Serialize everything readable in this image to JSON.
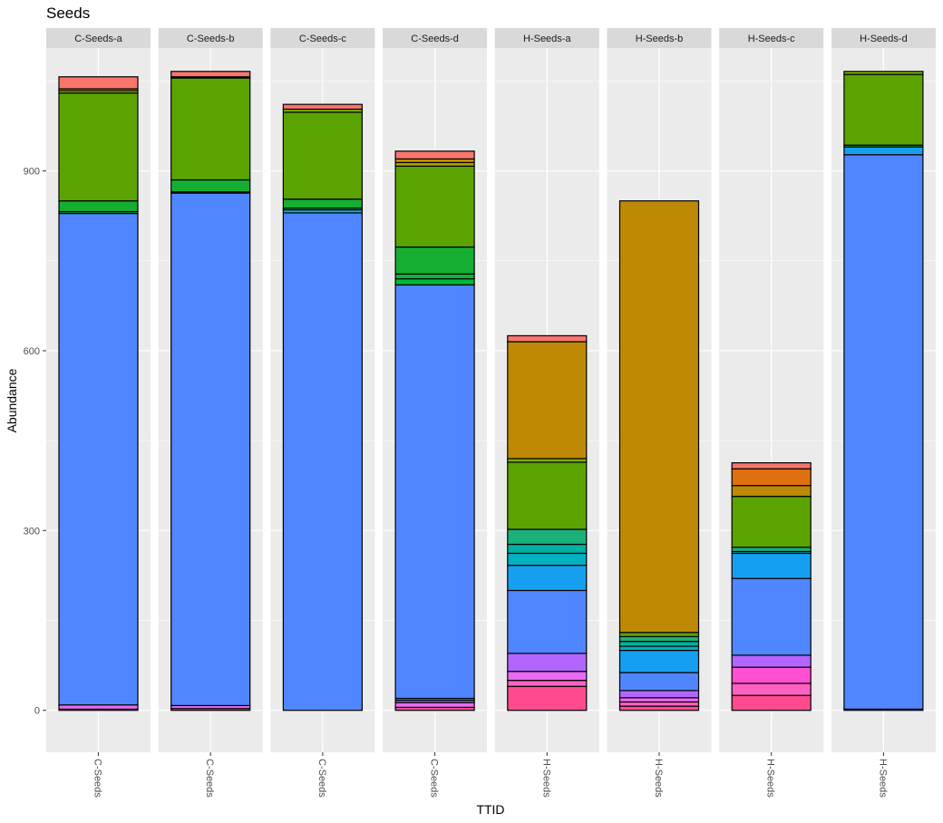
{
  "chart_data": {
    "type": "bar",
    "stacked": true,
    "title": "Seeds",
    "xlabel": "TTID",
    "ylabel": "Abundance",
    "ylim": [
      -70,
      1105
    ],
    "y_ticks": [
      0,
      300,
      600,
      900
    ],
    "grid": true,
    "legend": "none",
    "facets": [
      {
        "name": "C-Seeds-a",
        "x_label": "C-Seeds",
        "segments": [
          {
            "value": 2,
            "color": "#FF4A8F"
          },
          {
            "value": 7,
            "color": "#E76BF3"
          },
          {
            "value": 820,
            "color": "#5086FF"
          },
          {
            "value": 3,
            "color": "#00BA38"
          },
          {
            "value": 18,
            "color": "#15AE33"
          },
          {
            "value": 180,
            "color": "#5BA300"
          },
          {
            "value": 4,
            "color": "#7CAE00"
          },
          {
            "value": 3,
            "color": "#AEA200"
          },
          {
            "value": 20,
            "color": "#F8766D"
          }
        ]
      },
      {
        "name": "C-Seeds-b",
        "x_label": "C-Seeds",
        "segments": [
          {
            "value": 3,
            "color": "#FF4A8F"
          },
          {
            "value": 5,
            "color": "#E76BF3"
          },
          {
            "value": 855,
            "color": "#5086FF"
          },
          {
            "value": 2,
            "color": "#00BA38"
          },
          {
            "value": 20,
            "color": "#15AE33"
          },
          {
            "value": 170,
            "color": "#5BA300"
          },
          {
            "value": 2,
            "color": "#7CAE00"
          },
          {
            "value": 9,
            "color": "#F8766D"
          }
        ]
      },
      {
        "name": "C-Seeds-c",
        "x_label": "C-Seeds",
        "segments": [
          {
            "value": 830,
            "color": "#5086FF"
          },
          {
            "value": 5,
            "color": "#00B8E7"
          },
          {
            "value": 3,
            "color": "#00BA38"
          },
          {
            "value": 15,
            "color": "#15AE33"
          },
          {
            "value": 145,
            "color": "#5BA300"
          },
          {
            "value": 5,
            "color": "#7CAE00"
          },
          {
            "value": 8,
            "color": "#F8766D"
          }
        ]
      },
      {
        "name": "C-Seeds-d",
        "x_label": "C-Seeds",
        "segments": [
          {
            "value": 5,
            "color": "#FF4A8F"
          },
          {
            "value": 8,
            "color": "#E76BF3"
          },
          {
            "value": 4,
            "color": "#7B68EE"
          },
          {
            "value": 3,
            "color": "#00B8E7"
          },
          {
            "value": 690,
            "color": "#5086FF"
          },
          {
            "value": 10,
            "color": "#00BA38"
          },
          {
            "value": 8,
            "color": "#00BA38"
          },
          {
            "value": 45,
            "color": "#15AE33"
          },
          {
            "value": 135,
            "color": "#5BA300"
          },
          {
            "value": 6,
            "color": "#AEA200"
          },
          {
            "value": 6,
            "color": "#C09000"
          },
          {
            "value": 13,
            "color": "#F8766D"
          }
        ]
      },
      {
        "name": "H-Seeds-a",
        "x_label": "H-Seeds",
        "segments": [
          {
            "value": 40,
            "color": "#FF4A8F"
          },
          {
            "value": 10,
            "color": "#FF61C3"
          },
          {
            "value": 15,
            "color": "#E76BF3"
          },
          {
            "value": 30,
            "color": "#B266FF"
          },
          {
            "value": 105,
            "color": "#5086FF"
          },
          {
            "value": 42,
            "color": "#169FF0"
          },
          {
            "value": 20,
            "color": "#00B0C0"
          },
          {
            "value": 15,
            "color": "#00B0A0"
          },
          {
            "value": 25,
            "color": "#1CB07A"
          },
          {
            "value": 112,
            "color": "#5BA300"
          },
          {
            "value": 6,
            "color": "#7CAE00"
          },
          {
            "value": 195,
            "color": "#BE8A06"
          },
          {
            "value": 10,
            "color": "#F8766D"
          }
        ]
      },
      {
        "name": "H-Seeds-b",
        "x_label": "H-Seeds",
        "segments": [
          {
            "value": 7,
            "color": "#FF4A8F"
          },
          {
            "value": 7,
            "color": "#FF61C3"
          },
          {
            "value": 7,
            "color": "#E76BF3"
          },
          {
            "value": 12,
            "color": "#B266FF"
          },
          {
            "value": 30,
            "color": "#5086FF"
          },
          {
            "value": 37,
            "color": "#169FF0"
          },
          {
            "value": 7,
            "color": "#00B0C0"
          },
          {
            "value": 8,
            "color": "#00B0A0"
          },
          {
            "value": 8,
            "color": "#1CB07A"
          },
          {
            "value": 7,
            "color": "#5BA300"
          },
          {
            "value": 720,
            "color": "#BE8A06"
          }
        ]
      },
      {
        "name": "H-Seeds-c",
        "x_label": "H-Seeds",
        "segments": [
          {
            "value": 25,
            "color": "#FF4A8F"
          },
          {
            "value": 20,
            "color": "#FF61C3"
          },
          {
            "value": 27,
            "color": "#FF4FD3"
          },
          {
            "value": 20,
            "color": "#B266FF"
          },
          {
            "value": 128,
            "color": "#5086FF"
          },
          {
            "value": 42,
            "color": "#169FF0"
          },
          {
            "value": 3,
            "color": "#00B0C0"
          },
          {
            "value": 7,
            "color": "#1CB07A"
          },
          {
            "value": 85,
            "color": "#5BA300"
          },
          {
            "value": 18,
            "color": "#BE8A06"
          },
          {
            "value": 28,
            "color": "#DF7010"
          },
          {
            "value": 10,
            "color": "#F8766D"
          }
        ]
      },
      {
        "name": "H-Seeds-d",
        "x_label": "H-Seeds",
        "segments": [
          {
            "value": 2,
            "color": "#7B68EE"
          },
          {
            "value": 925,
            "color": "#5086FF"
          },
          {
            "value": 13,
            "color": "#169FF0"
          },
          {
            "value": 3,
            "color": "#00BA38"
          },
          {
            "value": 118,
            "color": "#5BA300"
          },
          {
            "value": 5,
            "color": "#7CAE00"
          }
        ]
      }
    ],
    "colors": {
      "panel_background": "#EBEBEB",
      "grid_line": "#FFFFFF",
      "strip_background": "#D9D9D9",
      "bar_outline": "#000000"
    }
  }
}
